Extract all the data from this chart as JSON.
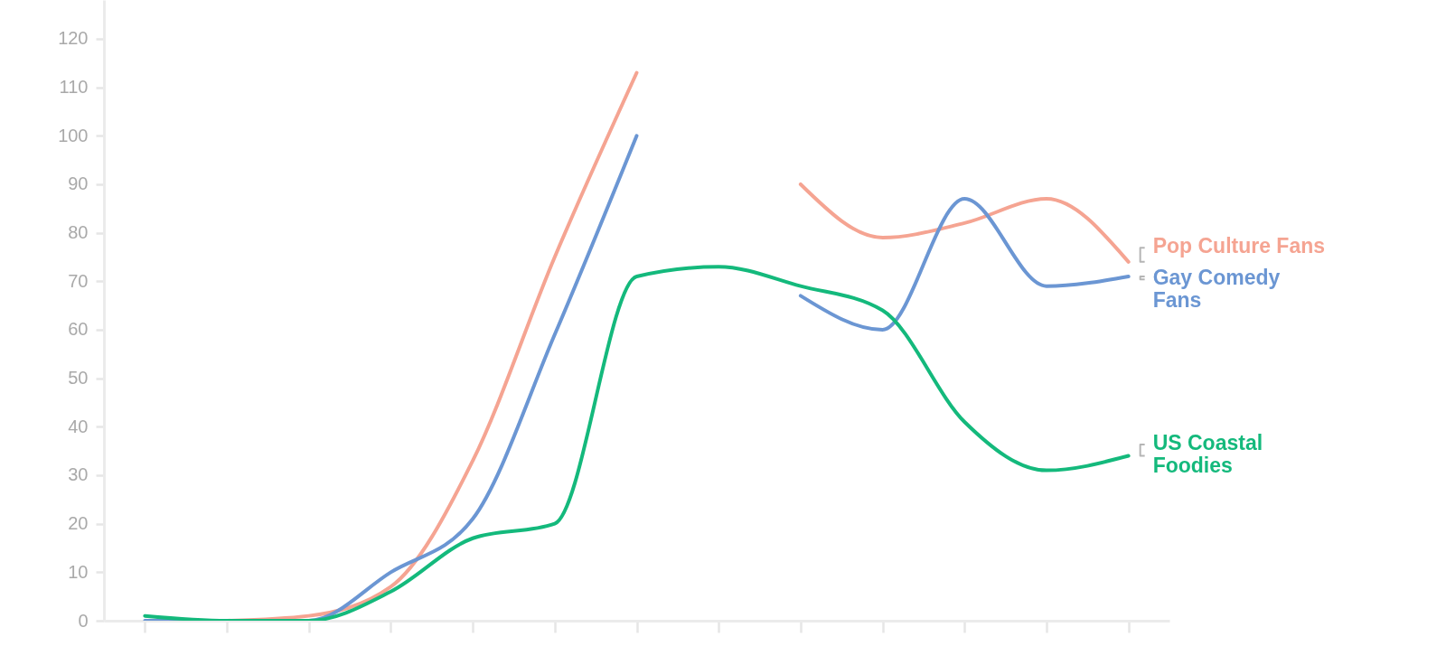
{
  "chart_data": {
    "type": "line",
    "categories": [
      null,
      null,
      null,
      null,
      null,
      null,
      null,
      null,
      null,
      null,
      null,
      null,
      null
    ],
    "ylim": [
      0,
      128
    ],
    "yticks": [
      0,
      10,
      20,
      30,
      40,
      50,
      60,
      70,
      80,
      90,
      100,
      110,
      120
    ],
    "tick_labels": "y",
    "series": [
      {
        "name": "Pop Culture Fans",
        "color": "#f5a492",
        "values": [
          null,
          0,
          1,
          7,
          33,
          75,
          113,
          null,
          90,
          79,
          82,
          87,
          74
        ]
      },
      {
        "name": "Gay Comedy Fans",
        "color": "#6b96d3",
        "values": [
          0,
          0,
          0,
          10,
          21,
          59,
          100,
          null,
          67,
          60,
          87,
          69,
          71
        ]
      },
      {
        "name": "US Coastal Foodies",
        "color": "#14b97c",
        "values": [
          1,
          0,
          0,
          6,
          17,
          20,
          71,
          73,
          69,
          64,
          41,
          31,
          34
        ]
      }
    ]
  }
}
